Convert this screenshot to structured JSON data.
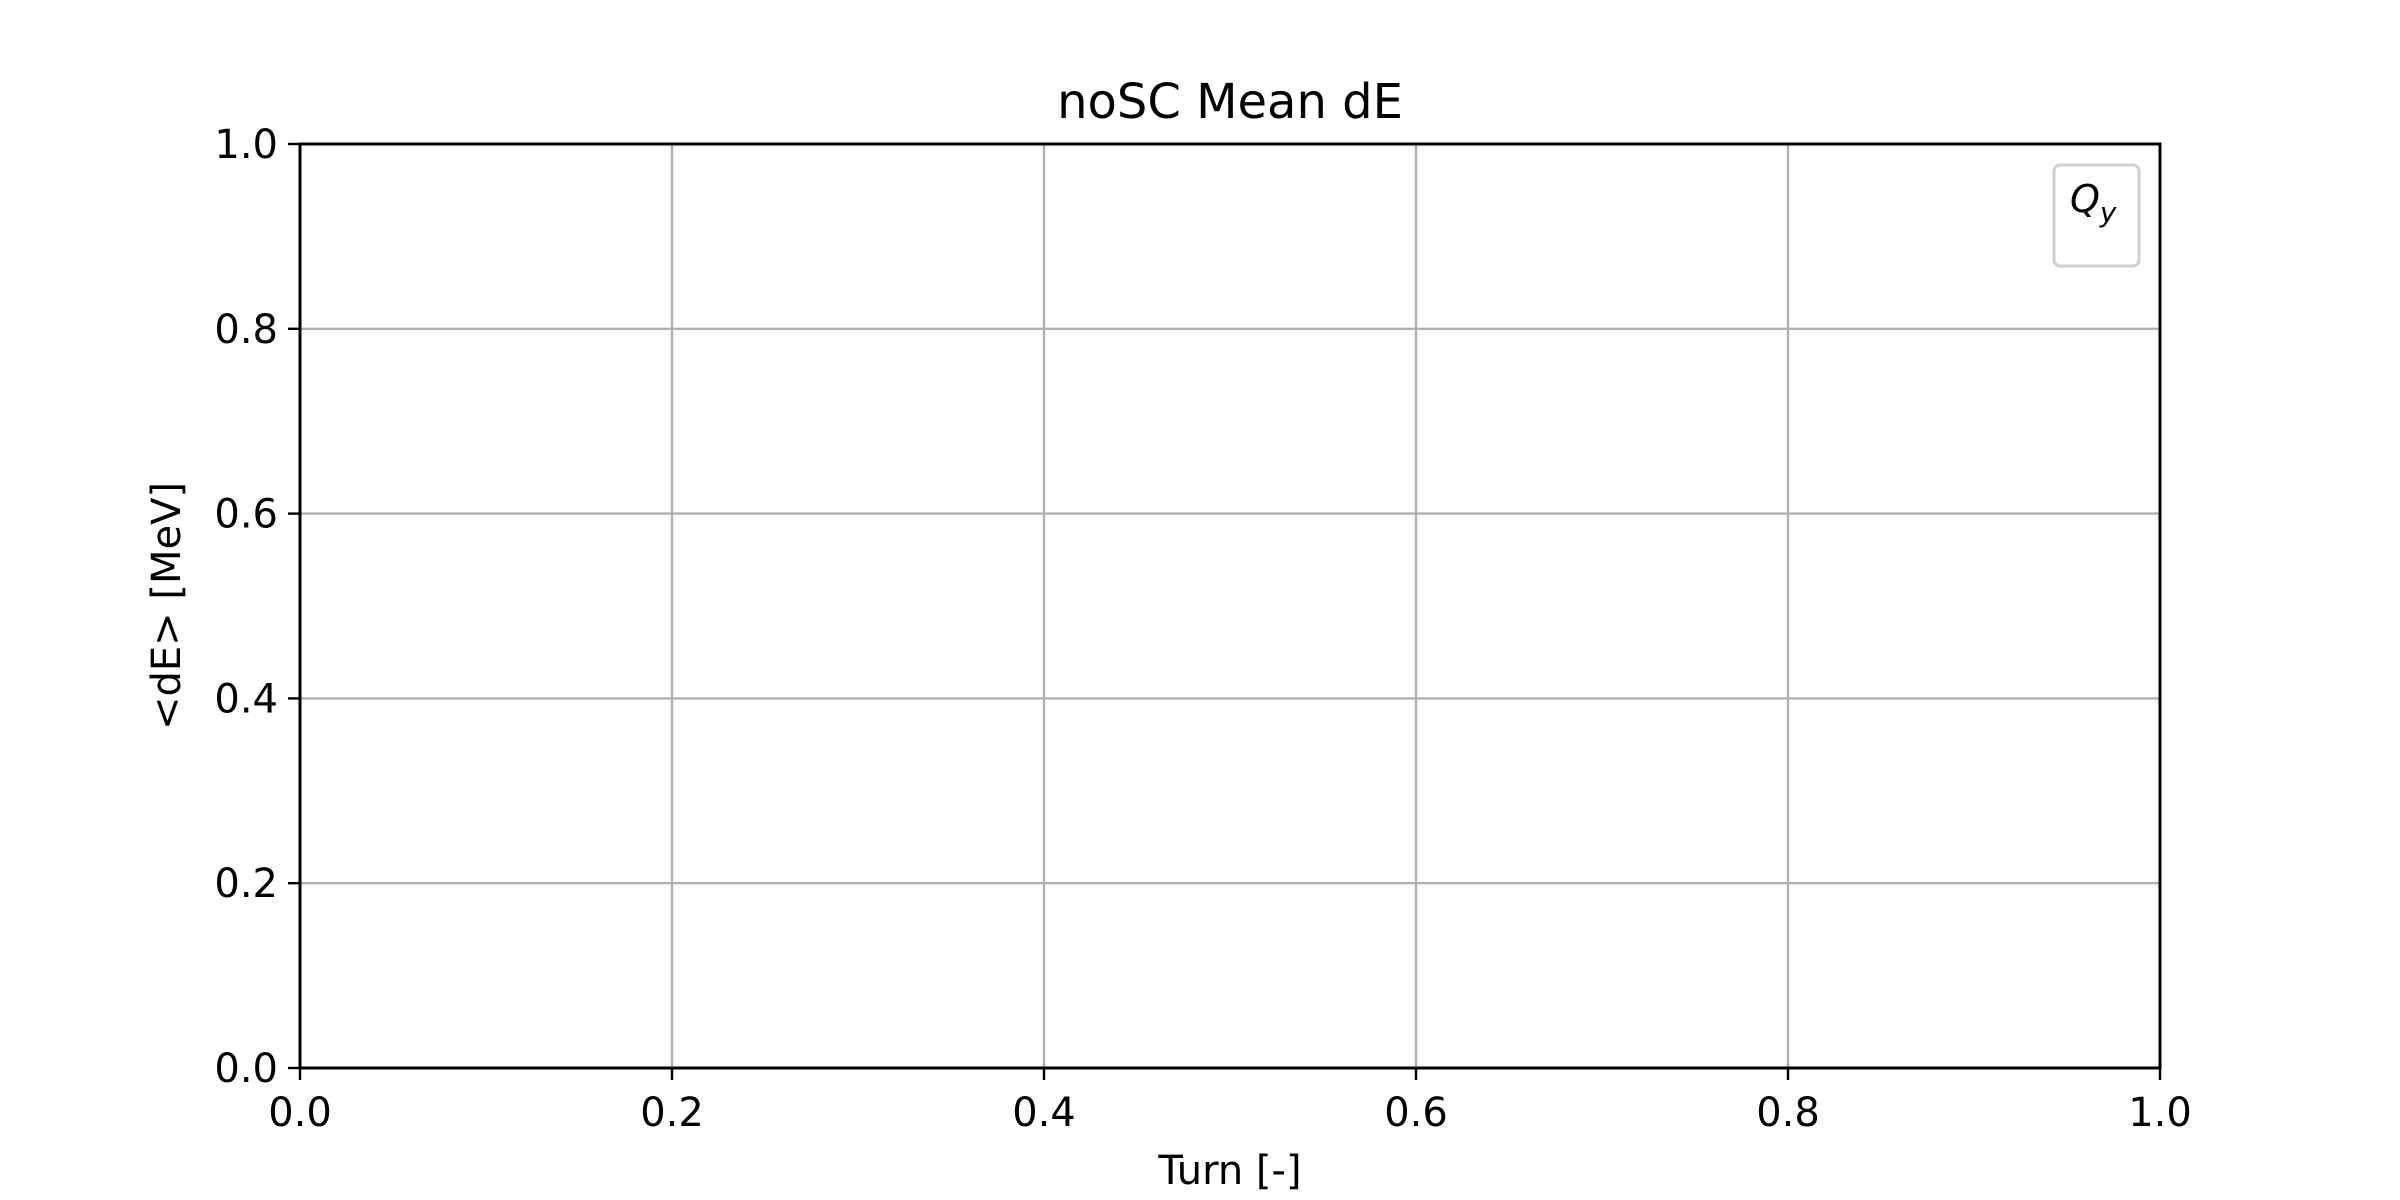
{
  "chart_data": {
    "type": "line",
    "title": "noSC Mean dE",
    "xlabel": "Turn [-]",
    "ylabel": "<dE> [MeV]",
    "xlim": [
      0.0,
      1.0
    ],
    "ylim": [
      0.0,
      1.0
    ],
    "xticks": [
      "0.0",
      "0.2",
      "0.4",
      "0.6",
      "0.8",
      "1.0"
    ],
    "yticks": [
      "0.0",
      "0.2",
      "0.4",
      "0.6",
      "0.8",
      "1.0"
    ],
    "grid": true,
    "legend": {
      "placement": "top-right",
      "entries": [
        {
          "label": "Q",
          "subscript": "y"
        }
      ]
    },
    "series": [],
    "colors": {
      "grid": "#b0b0b0",
      "axes": "#000000",
      "legend_border": "#d0d0d0"
    }
  }
}
